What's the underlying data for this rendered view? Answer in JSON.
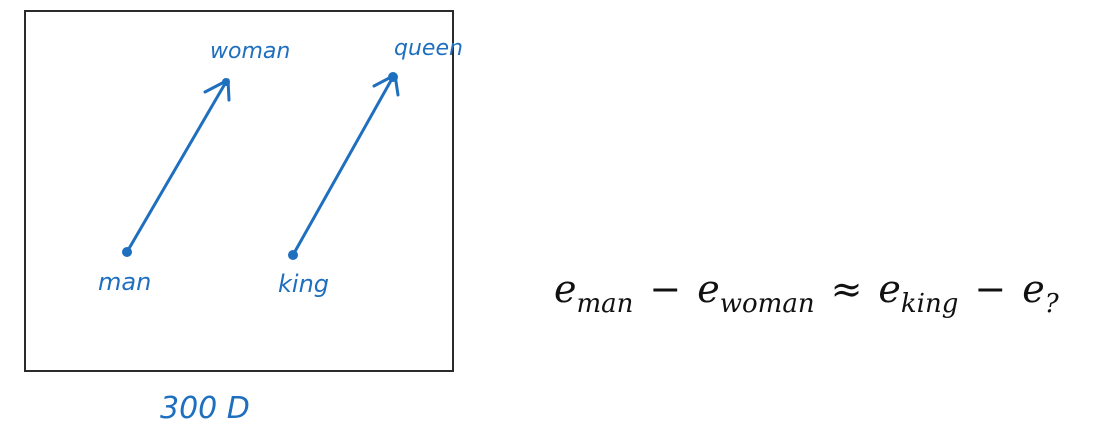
{
  "diagram": {
    "ink_color": "#1f6fbf",
    "frame_color": "#2b2b2b",
    "labels": {
      "man": "man",
      "woman": "woman",
      "king": "king",
      "queen": "queen",
      "dimension": "300 D"
    }
  },
  "equation": {
    "e1": "e",
    "e1_sub": "man",
    "minus1": "−",
    "e2": "e",
    "e2_sub": "woman",
    "approx": "≈",
    "e3": "e",
    "e3_sub": "king",
    "minus2": "−",
    "e4": "e",
    "e4_sub": "?"
  }
}
